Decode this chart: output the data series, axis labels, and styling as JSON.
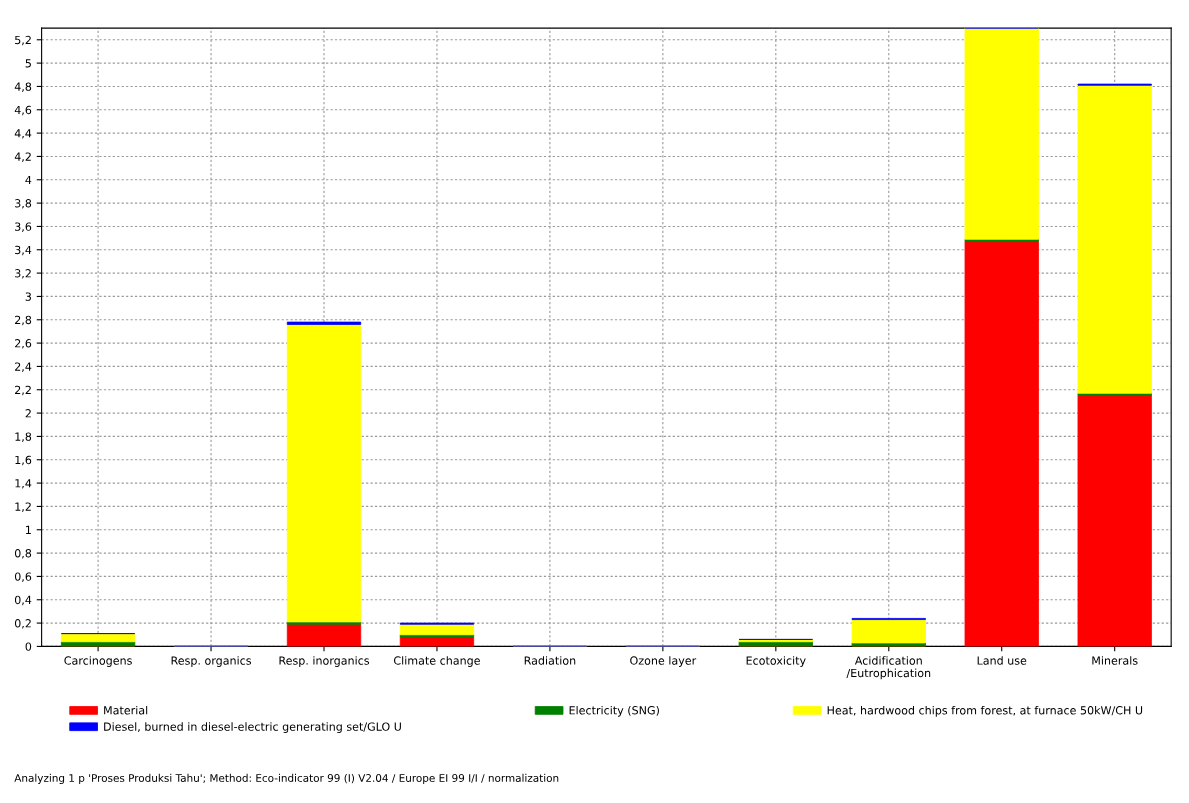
{
  "chart_data": {
    "type": "bar",
    "stacked": true,
    "categories": [
      "Carcinogens",
      "Resp. organics",
      "Resp. inorganics",
      "Climate change",
      "Radiation",
      "Ozone layer",
      "Ecotoxicity",
      "Acidification\n/Eutrophication",
      "Land use",
      "Minerals"
    ],
    "series": [
      {
        "name": "Material",
        "color": "#ff0000",
        "values": [
          0,
          0,
          0.19,
          0.08,
          0,
          0,
          0,
          0,
          3.47,
          2.15
        ]
      },
      {
        "name": "Electricity (SNG)",
        "color": "#008000",
        "values": [
          0.04,
          0,
          0.02,
          0.02,
          0,
          0,
          0.04,
          0.03,
          0.02,
          0.02
        ]
      },
      {
        "name": "Heat, hardwood chips from forest, at furnace 50kW/CH U",
        "color": "#ffff00",
        "values": [
          0.07,
          0,
          2.55,
          0.09,
          0,
          0,
          0.02,
          0.2,
          1.81,
          2.64
        ]
      },
      {
        "name": "Diesel, burned in diesel-electric generating set/GLO U",
        "color": "#0000ff",
        "values": [
          0,
          0,
          0.02,
          0.01,
          0,
          0,
          0,
          0.01,
          0,
          0.01
        ]
      }
    ],
    "ylim": [
      0,
      5.3
    ],
    "yticks": [
      0,
      {
        "value": 0.2,
        "label": "0,2"
      },
      {
        "value": 0.4,
        "label": "0,4"
      },
      {
        "value": 0.6,
        "label": "0,6"
      },
      {
        "value": 0.8,
        "label": "0,8"
      },
      1,
      {
        "value": 1.2,
        "label": "1,2"
      },
      {
        "value": 1.4,
        "label": "1,4"
      },
      {
        "value": 1.6,
        "label": "1,6"
      },
      {
        "value": 1.8,
        "label": "1,8"
      },
      2,
      {
        "value": 2.2,
        "label": "2,2"
      },
      {
        "value": 2.4,
        "label": "2,4"
      },
      {
        "value": 2.6,
        "label": "2,6"
      },
      {
        "value": 2.8,
        "label": "2,8"
      },
      3,
      {
        "value": 3.2,
        "label": "3,2"
      },
      {
        "value": 3.4,
        "label": "3,4"
      },
      {
        "value": 3.6,
        "label": "3,6"
      },
      {
        "value": 3.8,
        "label": "3,8"
      },
      4,
      {
        "value": 4.2,
        "label": "4,2"
      },
      {
        "value": 4.4,
        "label": "4,4"
      },
      {
        "value": 4.6,
        "label": "4,6"
      },
      {
        "value": 4.8,
        "label": "4,8"
      },
      5,
      {
        "value": 5.2,
        "label": "5,2"
      }
    ],
    "grid": true,
    "legend": "bottom",
    "annotations": [
      "Analyzing 1 p 'Proses Produksi Tahu'; Method: Eco-indicator 99 (I) V2.04 / Europe EI 99 I/I / normalization"
    ]
  }
}
